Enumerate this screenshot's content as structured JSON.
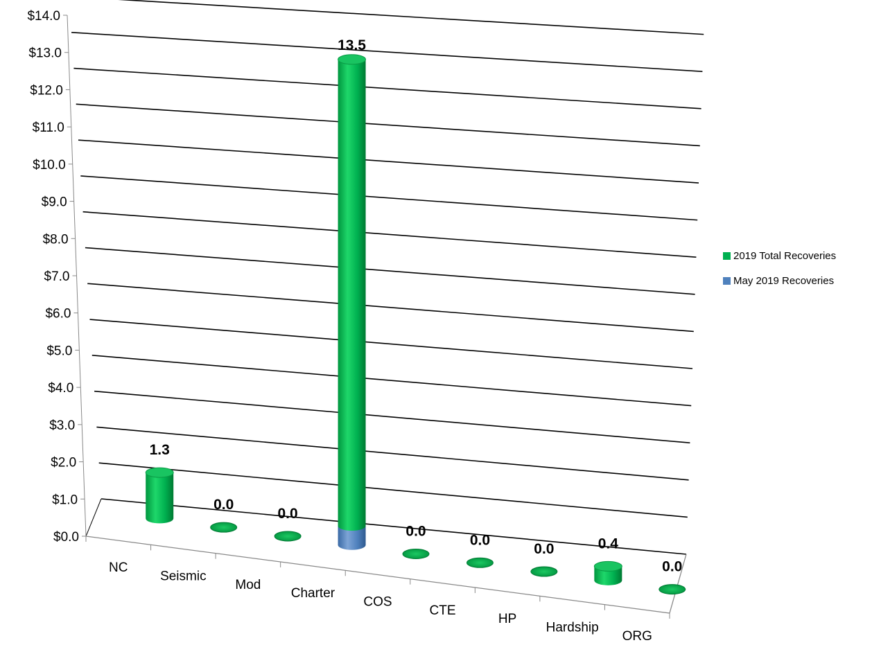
{
  "chart_data": {
    "type": "bar",
    "style": "3d-cylinder",
    "categories": [
      "NC",
      "Seismic",
      "Mod",
      "Charter",
      "COS",
      "CTE",
      "HP",
      "Hardship",
      "ORG"
    ],
    "series": [
      {
        "name": "2019 Total Recoveries",
        "color": "#00B050",
        "values": [
          1.3,
          0.0,
          0.0,
          13.5,
          0.0,
          0.0,
          0.0,
          0.4,
          0.0
        ]
      },
      {
        "name": "May 2019  Recoveries",
        "color": "#4F81BD",
        "values": [
          0.0,
          0.0,
          0.0,
          0.5,
          0.0,
          0.0,
          0.0,
          0.0,
          0.0
        ]
      }
    ],
    "data_labels": [
      "1.3",
      "0.0",
      "0.0",
      "13.5",
      "0.0",
      "0.0",
      "0.0",
      "0.4",
      "0.0"
    ],
    "y_tick_labels": [
      "$0.0",
      "$1.0",
      "$2.0",
      "$3.0",
      "$4.0",
      "$5.0",
      "$6.0",
      "$7.0",
      "$8.0",
      "$9.0",
      "$10.0",
      "$11.0",
      "$12.0",
      "$13.0",
      "$14.0"
    ],
    "ylim": [
      0,
      14
    ],
    "title": "",
    "xlabel": "",
    "ylabel": "",
    "grid": true,
    "legend_position": "right"
  }
}
